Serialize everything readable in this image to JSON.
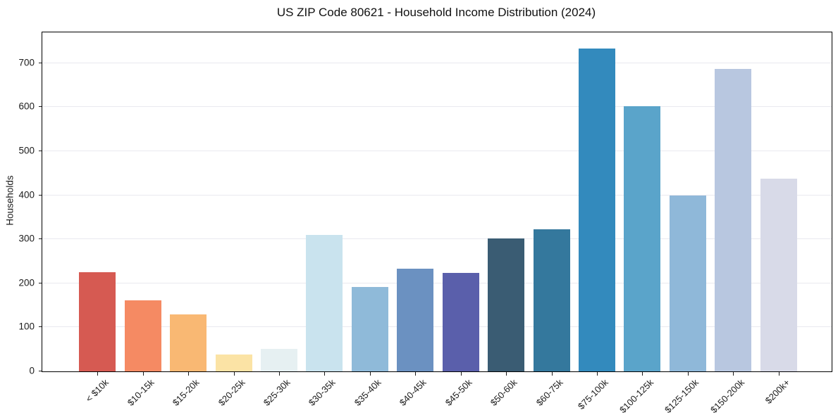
{
  "chart_data": {
    "type": "bar",
    "title": "US ZIP Code 80621 - Household Income Distribution (2024)",
    "xlabel": "",
    "ylabel": "Households",
    "categories": [
      "< $10k",
      "$10-15k",
      "$15-20k",
      "$20-25k",
      "$25-30k",
      "$30-35k",
      "$35-40k",
      "$40-45k",
      "$45-50k",
      "$50-60k",
      "$60-75k",
      "$75-100k",
      "$100-125k",
      "$125-150k",
      "$150-200k",
      "$200k+"
    ],
    "values": [
      225,
      162,
      129,
      39,
      51,
      310,
      192,
      234,
      223,
      302,
      323,
      733,
      602,
      400,
      687,
      437
    ],
    "bar_colors": [
      "#d65a52",
      "#f58a63",
      "#f9b873",
      "#fbe3a5",
      "#e6f0f2",
      "#c9e3ee",
      "#8fbad9",
      "#6b91c1",
      "#5a5fab",
      "#3a5c73",
      "#34789d",
      "#338abd",
      "#5aa4ca",
      "#8fb8d9",
      "#b8c7e0",
      "#d8dae8"
    ],
    "ylim": [
      0,
      770
    ],
    "yticks": [
      0,
      100,
      200,
      300,
      400,
      500,
      600,
      700
    ],
    "grid": "horizontal",
    "grid_color": "#e9e9ef",
    "axis_color": "#000000",
    "legend": "none"
  }
}
